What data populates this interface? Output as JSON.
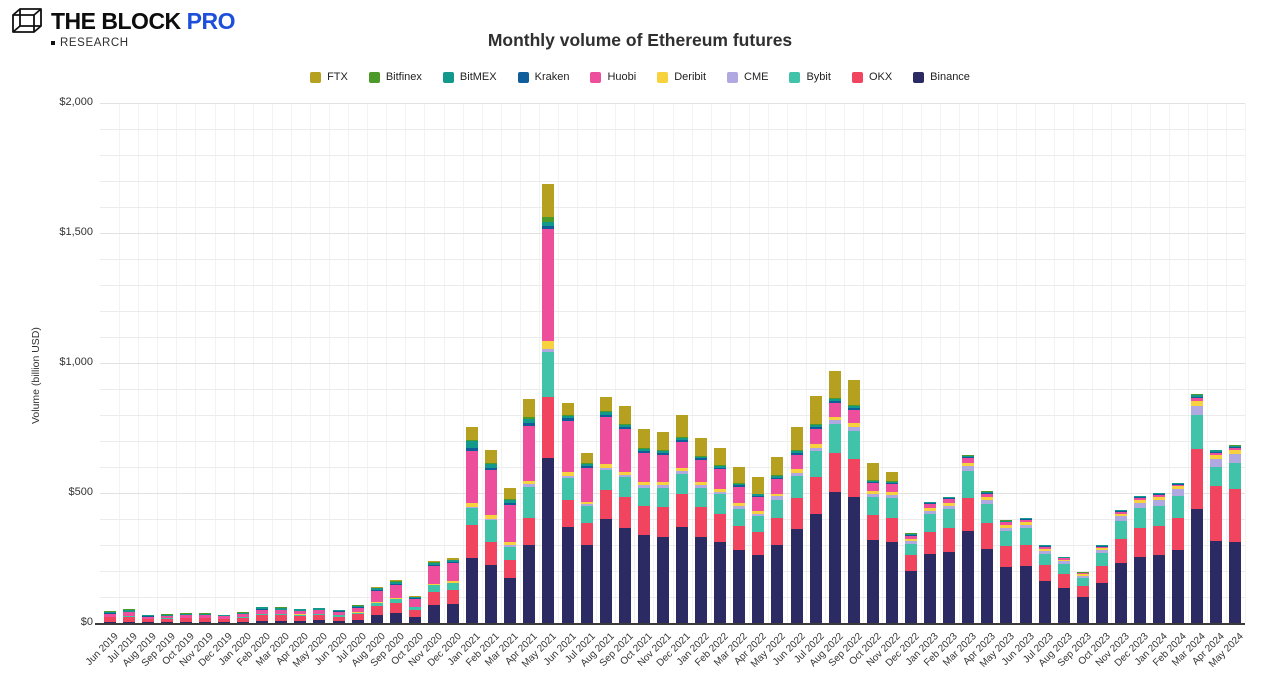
{
  "header": {
    "brand_name": "THE BLOCK",
    "brand_pro": "PRO",
    "brand_sub": "RESEARCH",
    "brand_blue": "#1d4fdb"
  },
  "chart_data": {
    "type": "bar",
    "stacked": true,
    "title": "Monthly volume of Ethereum futures",
    "xlabel": "",
    "ylabel": "Volume (billion USD)",
    "ylim": [
      0,
      2000
    ],
    "gridline_interval": 100,
    "ytick_values": [
      0,
      500,
      1000,
      1500,
      2000
    ],
    "ytick_labels": [
      "$0",
      "$500",
      "$1,000",
      "$1,500",
      "$2,000"
    ],
    "legend_position": "top",
    "grid": true,
    "stack_order_bottom_to_top": [
      "Binance",
      "OKX",
      "Bybit",
      "CME",
      "Deribit",
      "Huobi",
      "Kraken",
      "BitMEX",
      "Bitfinex",
      "FTX"
    ],
    "categories": [
      "Jun 2019",
      "Jul 2019",
      "Aug 2019",
      "Sep 2019",
      "Oct 2019",
      "Nov 2019",
      "Dec 2019",
      "Jan 2020",
      "Feb 2020",
      "Mar 2020",
      "Apr 2020",
      "May 2020",
      "Jun 2020",
      "Jul 2020",
      "Aug 2020",
      "Sep 2020",
      "Oct 2020",
      "Nov 2020",
      "Dec 2020",
      "Jan 2021",
      "Feb 2021",
      "Mar 2021",
      "Apr 2021",
      "May 2021",
      "Jun 2021",
      "Jul 2021",
      "Aug 2021",
      "Sep 2021",
      "Oct 2021",
      "Nov 2021",
      "Dec 2021",
      "Jan 2022",
      "Feb 2022",
      "Mar 2022",
      "Apr 2022",
      "May 2022",
      "Jun 2022",
      "Jul 2022",
      "Aug 2022",
      "Sep 2022",
      "Oct 2022",
      "Nov 2022",
      "Dec 2022",
      "Jan 2023",
      "Feb 2023",
      "Mar 2023",
      "Apr 2023",
      "May 2023",
      "Jun 2023",
      "Jul 2023",
      "Aug 2023",
      "Sep 2023",
      "Oct 2023",
      "Nov 2023",
      "Dec 2023",
      "Jan 2024",
      "Feb 2024",
      "Mar 2024",
      "Apr 2024",
      "May 2024"
    ],
    "series": [
      {
        "name": "FTX",
        "color": "#b5a01f",
        "values": [
          0,
          0,
          0,
          0,
          0,
          0,
          0,
          0,
          0,
          0,
          0,
          0,
          0,
          0,
          4,
          5,
          4,
          6,
          7,
          51,
          50,
          44,
          69,
          129,
          43,
          38,
          55,
          68,
          73,
          68,
          83,
          66,
          68,
          61,
          62,
          72,
          91,
          109,
          103,
          97,
          64,
          34,
          0,
          0,
          0,
          0,
          0,
          0,
          0,
          0,
          0,
          0,
          0,
          0,
          0,
          0,
          0,
          0,
          0,
          0
        ]
      },
      {
        "name": "Bitfinex",
        "color": "#4c9a2a",
        "values": [
          2,
          2,
          0.5,
          1,
          1,
          1,
          0.5,
          1,
          2,
          2,
          1,
          1,
          1,
          2,
          2,
          2,
          1,
          2,
          2,
          5,
          5,
          4,
          8,
          20,
          5,
          4,
          5,
          4,
          4,
          4,
          4,
          4,
          4,
          3,
          3,
          3,
          4,
          4,
          4,
          4,
          3,
          3,
          2,
          1,
          1,
          1,
          1,
          1,
          1,
          1,
          1,
          1,
          1,
          1,
          1,
          1,
          1,
          3,
          3,
          3
        ]
      },
      {
        "name": "BitMEX",
        "color": "#12998c",
        "values": [
          7,
          9,
          4,
          4,
          5,
          5,
          4,
          5,
          7,
          7,
          6,
          6,
          4,
          5,
          8,
          8,
          5,
          8,
          7,
          26,
          12,
          11,
          12,
          13,
          10,
          8,
          10,
          9,
          8,
          8,
          8,
          7,
          6,
          6,
          5,
          6,
          7,
          8,
          8,
          8,
          5,
          5,
          4,
          3,
          3,
          4,
          4,
          4,
          4,
          3,
          3,
          1,
          3,
          4,
          4,
          4,
          4,
          6,
          5,
          4
        ]
      },
      {
        "name": "Kraken",
        "color": "#0f5e9a",
        "values": [
          1,
          1.5,
          1,
          1,
          1,
          1,
          1,
          1.5,
          2,
          2,
          2,
          2,
          2,
          2,
          3,
          3,
          2,
          3,
          3,
          13,
          10,
          8,
          14,
          13,
          10,
          8,
          8,
          8,
          7,
          7,
          7,
          6,
          6,
          5,
          5,
          6,
          7,
          7,
          7,
          7,
          5,
          5,
          4,
          4,
          4,
          5,
          4,
          3,
          3,
          3,
          2,
          2,
          3,
          3,
          4,
          4,
          4,
          7,
          6,
          5
        ]
      },
      {
        "name": "Huobi",
        "color": "#ed4f9d",
        "values": [
          11,
          13,
          7,
          8,
          9,
          9,
          8,
          9,
          15,
          14,
          13,
          14,
          12,
          18,
          42,
          50,
          30,
          70,
          70,
          200,
          173,
          140,
          210,
          430,
          198,
          130,
          180,
          165,
          110,
          105,
          100,
          85,
          75,
          65,
          55,
          55,
          55,
          60,
          55,
          50,
          30,
          30,
          12,
          15,
          15,
          18,
          14,
          10,
          10,
          7,
          5,
          3,
          5,
          6,
          6,
          5,
          5,
          10,
          8,
          7
        ]
      },
      {
        "name": "Deribit",
        "color": "#f7d23e",
        "values": [
          1,
          1.5,
          1,
          1,
          1,
          1,
          1,
          1.5,
          2,
          2,
          2,
          2,
          2,
          2,
          4,
          4,
          3,
          6,
          6,
          13,
          13,
          13,
          14,
          32,
          13,
          11,
          14,
          13,
          13,
          13,
          13,
          12,
          11,
          10,
          10,
          11,
          12,
          13,
          14,
          14,
          11,
          11,
          8,
          10,
          10,
          14,
          12,
          10,
          10,
          8,
          7,
          6,
          8,
          10,
          12,
          12,
          12,
          18,
          16,
          17
        ]
      },
      {
        "name": "CME",
        "color": "#b0a8e0",
        "values": [
          0,
          0,
          0,
          0,
          0,
          0,
          0,
          0,
          0,
          0,
          0,
          0,
          0,
          0,
          0,
          0,
          0,
          0,
          0,
          5,
          6,
          6,
          8,
          10,
          8,
          6,
          8,
          8,
          10,
          10,
          10,
          10,
          10,
          10,
          10,
          12,
          14,
          14,
          14,
          15,
          12,
          12,
          10,
          12,
          12,
          18,
          15,
          12,
          13,
          11,
          10,
          8,
          12,
          18,
          20,
          22,
          24,
          36,
          30,
          34
        ]
      },
      {
        "name": "Bybit",
        "color": "#41c3a9",
        "values": [
          2,
          2,
          1.5,
          1.5,
          2,
          2,
          1.5,
          2,
          4,
          4,
          4,
          4,
          4,
          6,
          12,
          15,
          10,
          25,
          28,
          64,
          83,
          51,
          120,
          173,
          85,
          65,
          80,
          75,
          70,
          75,
          80,
          75,
          75,
          65,
          60,
          70,
          85,
          100,
          110,
          110,
          70,
          75,
          45,
          70,
          75,
          105,
          72,
          60,
          62,
          45,
          40,
          32,
          48,
          68,
          78,
          80,
          88,
          130,
          72,
          100
        ]
      },
      {
        "name": "OKX",
        "color": "#f0445f",
        "values": [
          18,
          20,
          12,
          13,
          14,
          14,
          12,
          16,
          22,
          20,
          18,
          19,
          16,
          20,
          35,
          40,
          25,
          52,
          55,
          128,
          90,
          70,
          105,
          236,
          104,
          85,
          110,
          120,
          110,
          115,
          125,
          115,
          110,
          95,
          90,
          105,
          120,
          140,
          150,
          145,
          95,
          95,
          60,
          85,
          90,
          125,
          100,
          80,
          82,
          62,
          52,
          42,
          65,
          95,
          110,
          112,
          122,
          230,
          212,
          205
        ]
      },
      {
        "name": "Binance",
        "color": "#2b2a63",
        "values": [
          4,
          5,
          3,
          3.5,
          4,
          4,
          3,
          5,
          8,
          9,
          9,
          10,
          9,
          13,
          30,
          38,
          25,
          68,
          72,
          250,
          223,
          173,
          300,
          634,
          369,
          300,
          400,
          365,
          340,
          330,
          370,
          330,
          310,
          280,
          260,
          300,
          360,
          420,
          505,
          485,
          320,
          310,
          200,
          265,
          275,
          355,
          285,
          215,
          220,
          160,
          135,
          100,
          155,
          230,
          255,
          260,
          280,
          440,
          315,
          310
        ]
      }
    ]
  }
}
